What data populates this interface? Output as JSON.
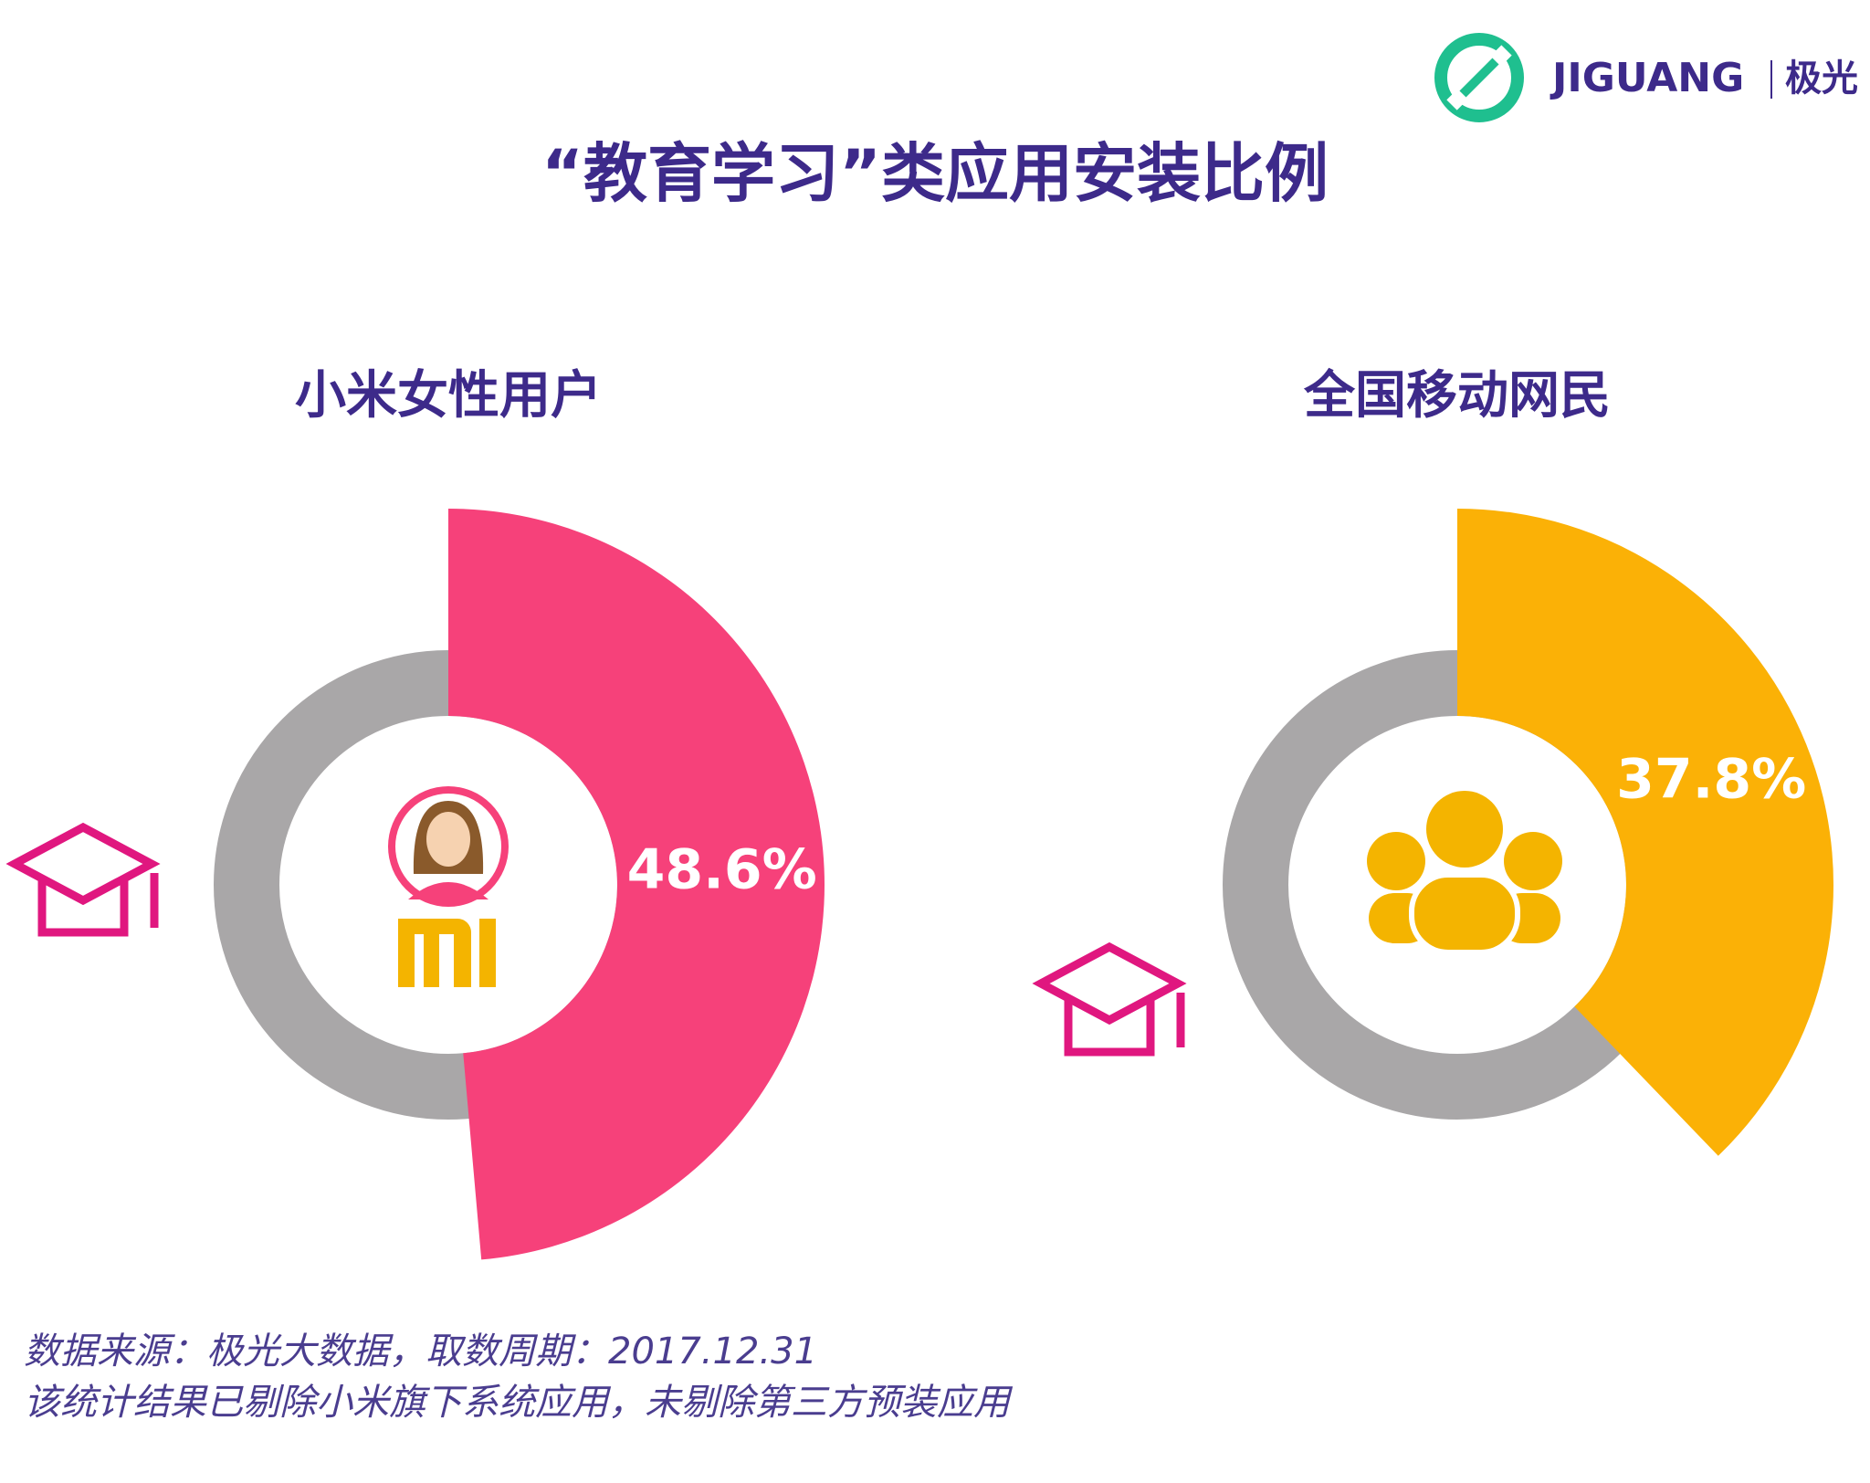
{
  "logo": {
    "brand": "JIGUANG",
    "brand_cn": "极光"
  },
  "title": "“教育学习”类应用安装比例",
  "chart_data": [
    {
      "type": "pie",
      "title": "小米女性用户",
      "values": [
        48.6
      ],
      "value_labels": [
        "48.6%"
      ],
      "color": "#f6417a"
    },
    {
      "type": "pie",
      "title": "全国移动网民",
      "values": [
        37.8
      ],
      "value_labels": [
        "37.8%"
      ],
      "color": "#fbb106"
    }
  ],
  "footnotes": [
    "数据来源：极光大数据，取数周期：2017.12.31",
    "该统计结果已剔除小米旗下系统应用，未剔除第三方预装应用"
  ]
}
